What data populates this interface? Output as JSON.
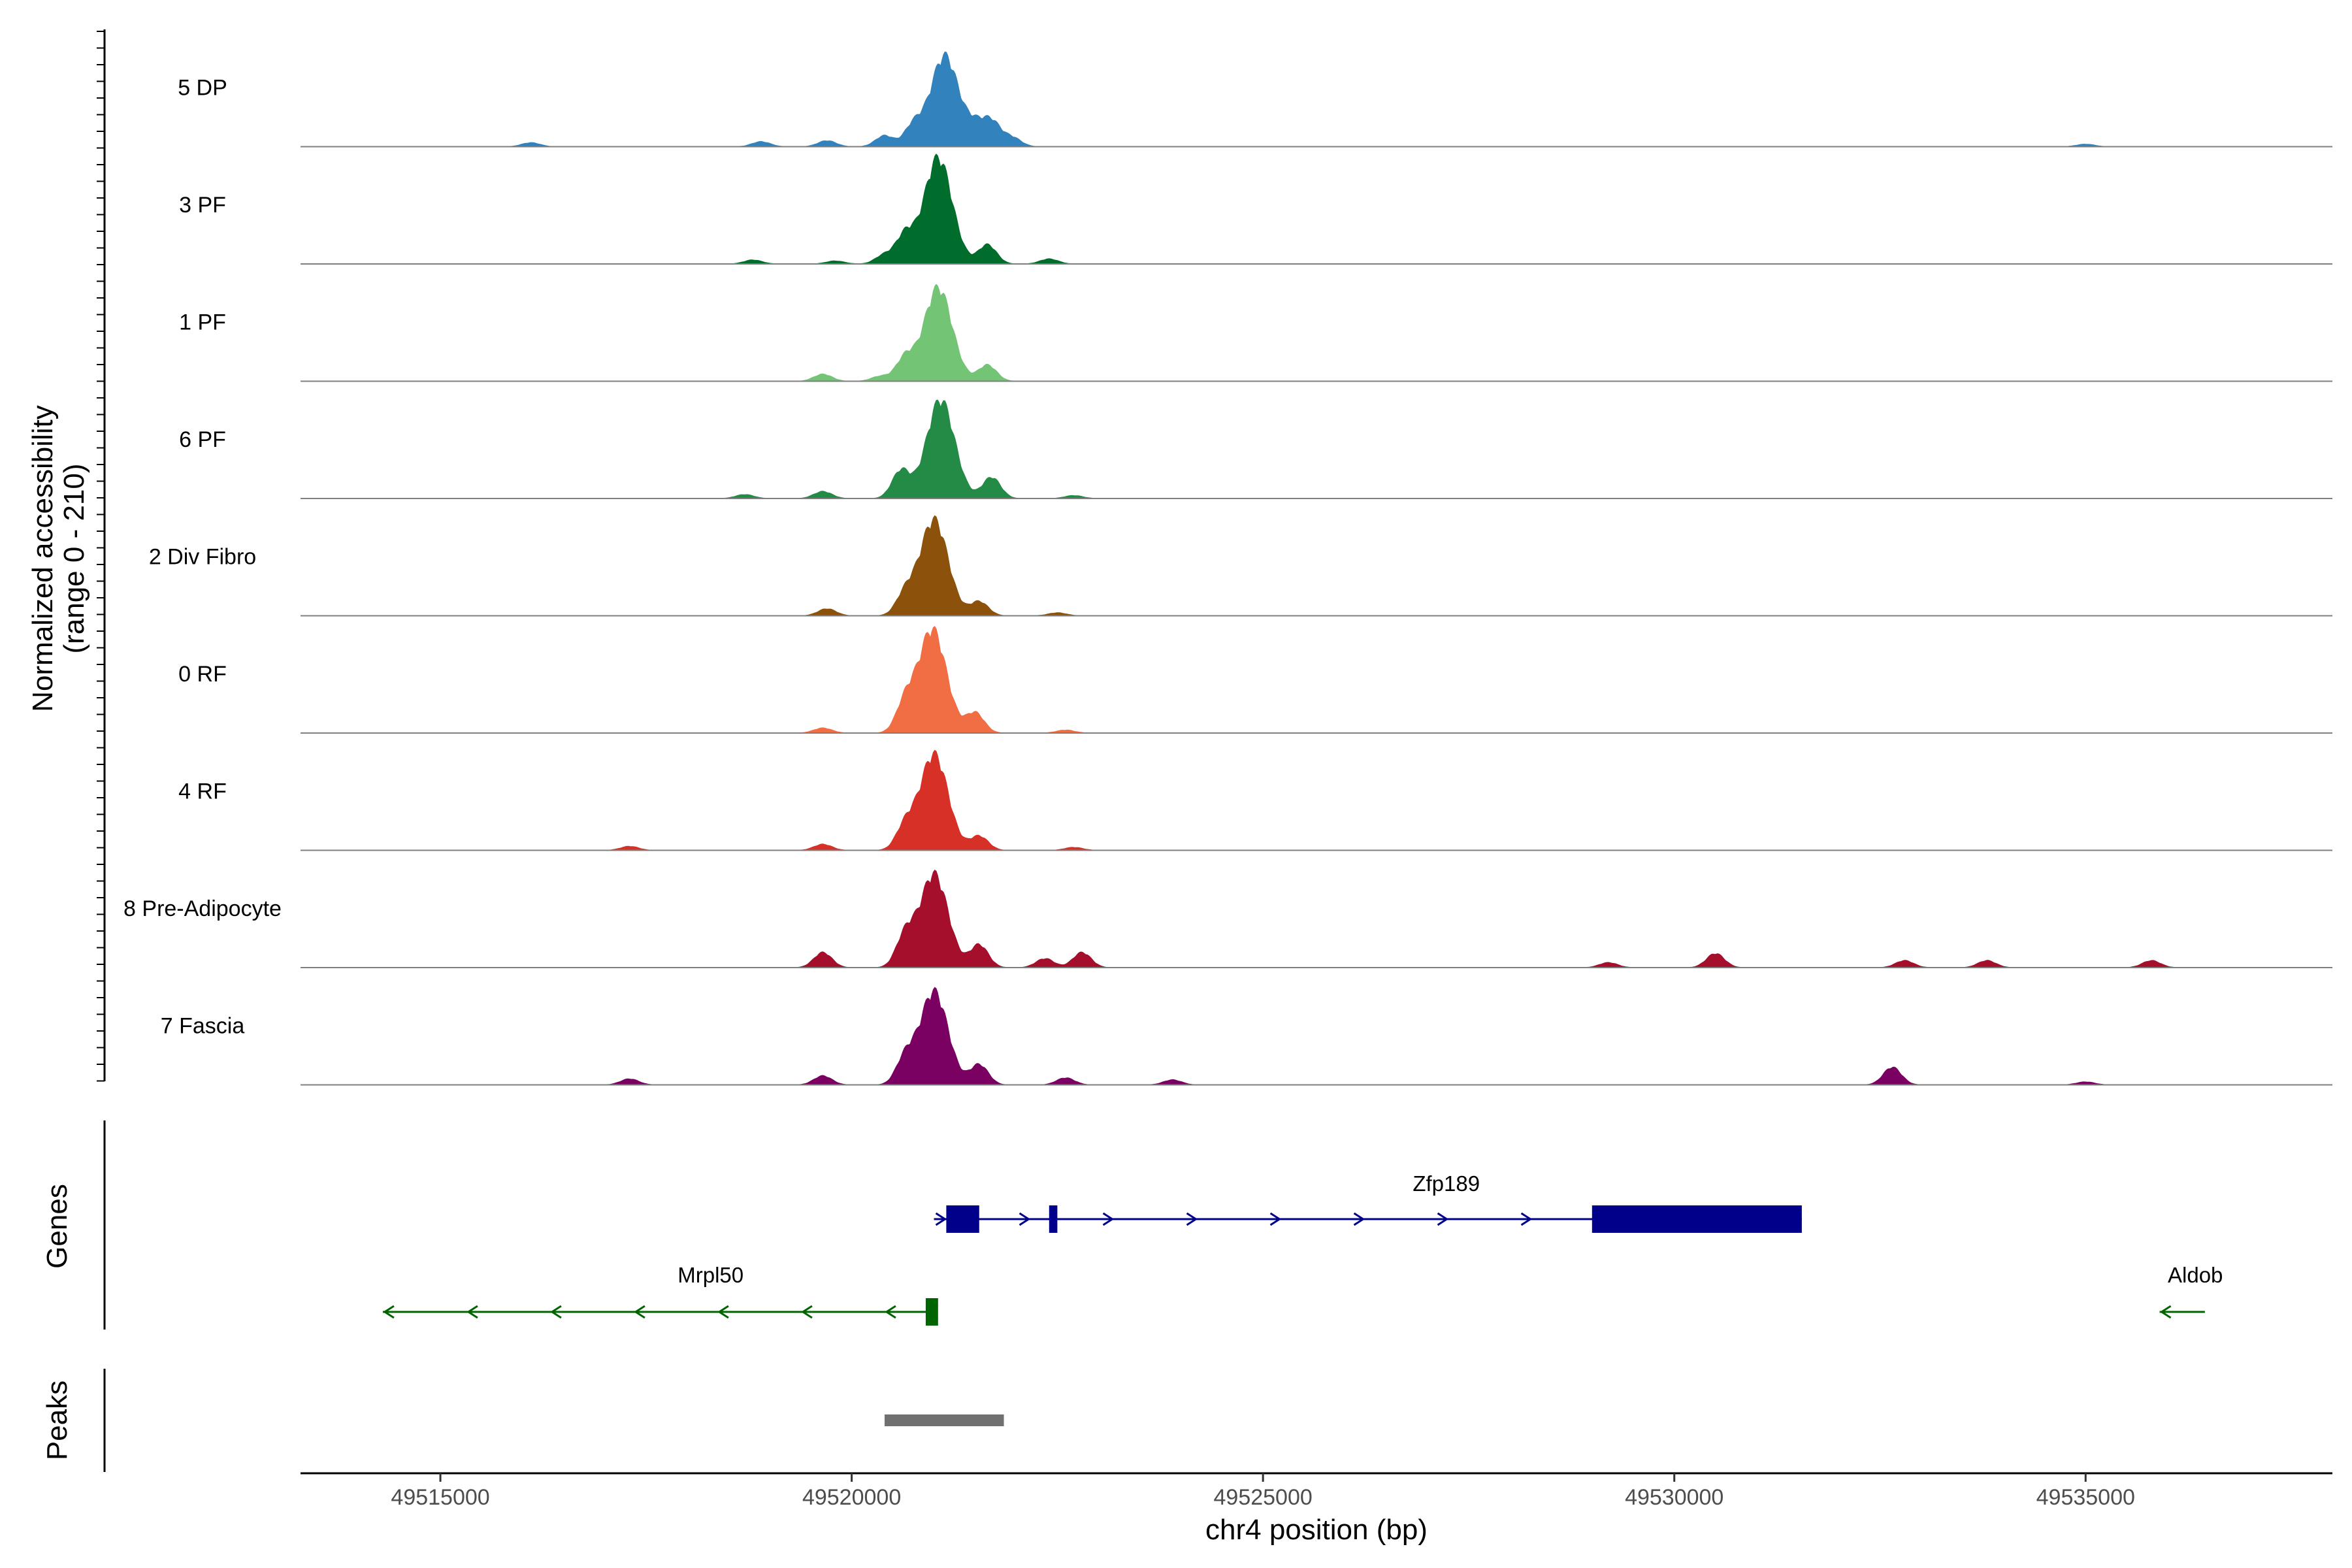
{
  "chart_data": {
    "type": "area",
    "title": "",
    "ylabel": "Normalized accessibility",
    "ylabel_range": "(range 0 - 210)",
    "y_range": [
      0,
      210
    ],
    "xlabel": "chr4 position (bp)",
    "xlim": [
      49513300,
      49538000
    ],
    "x_ticks": [
      49515000,
      49520000,
      49525000,
      49530000,
      49535000
    ],
    "x_tick_labels": [
      "49515000",
      "49520000",
      "49525000",
      "49530000",
      "49535000"
    ],
    "tracks": [
      {
        "name": "5 DP",
        "color": "#3182bd",
        "peaks": [
          [
            49521130,
            180
          ],
          [
            49520750,
            40
          ],
          [
            49521500,
            35
          ],
          [
            49521700,
            48
          ],
          [
            49520400,
            22
          ],
          [
            49521950,
            18
          ],
          [
            49519700,
            12
          ],
          [
            49518900,
            10
          ],
          [
            49516100,
            8
          ],
          [
            49535000,
            5
          ]
        ]
      },
      {
        "name": "3 PF",
        "color": "#006d2c",
        "peaks": [
          [
            49521050,
            210
          ],
          [
            49520650,
            55
          ],
          [
            49521650,
            38
          ],
          [
            49520400,
            18
          ],
          [
            49522400,
            10
          ],
          [
            49518800,
            8
          ],
          [
            49519800,
            6
          ]
        ]
      },
      {
        "name": "1 PF",
        "color": "#74c476",
        "peaks": [
          [
            49521050,
            185
          ],
          [
            49520650,
            45
          ],
          [
            49521650,
            32
          ],
          [
            49519650,
            14
          ],
          [
            49520350,
            10
          ]
        ]
      },
      {
        "name": "6 PF",
        "color": "#238b45",
        "peaks": [
          [
            49521080,
            195
          ],
          [
            49520600,
            55
          ],
          [
            49521700,
            42
          ],
          [
            49519650,
            14
          ],
          [
            49518700,
            8
          ],
          [
            49522700,
            6
          ]
        ]
      },
      {
        "name": "2 Div Fibro",
        "color": "#8c510a",
        "peaks": [
          [
            49521000,
            190
          ],
          [
            49520650,
            40
          ],
          [
            49521550,
            28
          ],
          [
            49519700,
            14
          ],
          [
            49522500,
            6
          ]
        ]
      },
      {
        "name": "0 RF",
        "color": "#f16d44",
        "peaks": [
          [
            49520980,
            205
          ],
          [
            49520650,
            55
          ],
          [
            49521500,
            40
          ],
          [
            49519650,
            10
          ],
          [
            49522600,
            6
          ]
        ]
      },
      {
        "name": "4 RF",
        "color": "#d73027",
        "peaks": [
          [
            49521000,
            190
          ],
          [
            49520650,
            45
          ],
          [
            49521550,
            28
          ],
          [
            49519650,
            12
          ],
          [
            49517300,
            8
          ],
          [
            49522700,
            6
          ]
        ]
      },
      {
        "name": "8 Pre-Adipocyte",
        "color": "#a50f2b",
        "peaks": [
          [
            49521000,
            185
          ],
          [
            49520650,
            60
          ],
          [
            49521550,
            45
          ],
          [
            49519650,
            30
          ],
          [
            49522800,
            30
          ],
          [
            49522350,
            18
          ],
          [
            49530500,
            28
          ],
          [
            49532800,
            14
          ],
          [
            49533800,
            14
          ],
          [
            49535800,
            14
          ],
          [
            49529200,
            10
          ]
        ]
      },
      {
        "name": "7 Fascia",
        "color": "#7a0062",
        "peaks": [
          [
            49521000,
            185
          ],
          [
            49520650,
            50
          ],
          [
            49521550,
            40
          ],
          [
            49519650,
            18
          ],
          [
            49517300,
            12
          ],
          [
            49532650,
            35
          ],
          [
            49522600,
            14
          ],
          [
            49523900,
            10
          ],
          [
            49535000,
            6
          ]
        ]
      }
    ]
  },
  "genes": [
    {
      "name": "Zfp189",
      "strand": "+",
      "color": "#00008b",
      "start": 49521000,
      "end": 49531550,
      "exons": [
        [
          49521150,
          49521550
        ],
        [
          49522400,
          49522500
        ],
        [
          49529000,
          49531550
        ]
      ]
    },
    {
      "name": "Mrpl50",
      "strand": "-",
      "color": "#006400",
      "start": 49514300,
      "end": 49521000,
      "exons": [
        [
          49520900,
          49521050
        ]
      ]
    },
    {
      "name": "Aldob",
      "strand": "-",
      "color": "#006400",
      "start": 49535900,
      "end": 49536450,
      "exons": []
    }
  ],
  "peaks_track": {
    "color": "#707070",
    "regions": [
      [
        49520400,
        49521850
      ]
    ]
  },
  "panel_titles": {
    "genes": "Genes",
    "peaks": "Peaks"
  }
}
